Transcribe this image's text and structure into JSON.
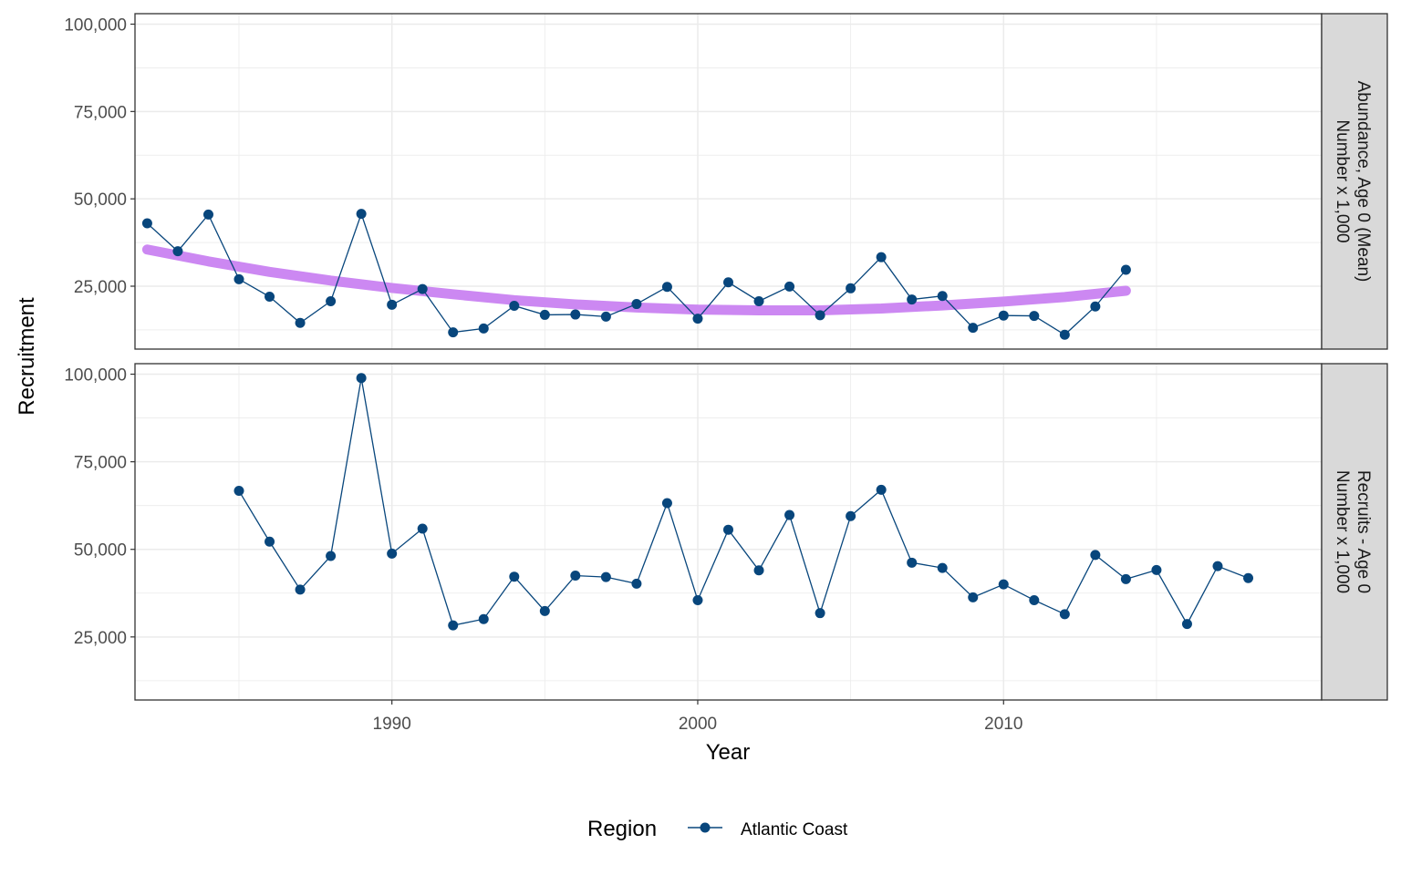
{
  "chart_data": {
    "type": "line",
    "x_label": "Year",
    "y_label": "Recruitment",
    "x_ticks": [
      1990,
      2000,
      2010
    ],
    "y_tick_values": [
      25000,
      50000,
      75000,
      100000
    ],
    "y_tick_labels": [
      "25,000",
      "50,000",
      "75,000",
      "100,000"
    ],
    "x_range": [
      1981.6,
      2020.4
    ],
    "grid": true,
    "legend": {
      "title": "Region",
      "entries": [
        "Atlantic Coast"
      ],
      "position": "bottom"
    },
    "colors": {
      "series": "#08467c",
      "trend": "#cc88f2",
      "strip_bg": "#d9d9d9",
      "grid": "#ebebeb"
    },
    "panels": [
      {
        "strip_lines": [
          "Abundance, Age 0 (Mean)",
          "Number x 1,000"
        ],
        "y_range": [
          7000,
          103000
        ],
        "series": [
          {
            "name": "Atlantic Coast",
            "x": [
              1982,
              1983,
              1984,
              1985,
              1986,
              1987,
              1988,
              1989,
              1990,
              1991,
              1992,
              1993,
              1994,
              1995,
              1996,
              1997,
              1998,
              1999,
              2000,
              2001,
              2002,
              2003,
              2004,
              2005,
              2006,
              2007,
              2008,
              2009,
              2010,
              2011,
              2012,
              2013,
              2014
            ],
            "y": [
              43000,
              35000,
              45500,
              27000,
              22000,
              14500,
              20700,
              45700,
              19700,
              24200,
              11800,
              12900,
              19400,
              16800,
              16900,
              16300,
              19900,
              24800,
              15700,
              26100,
              20700,
              24900,
              16700,
              24400,
              33300,
              21200,
              22200,
              13100,
              16600,
              16500,
              11100,
              19200,
              29700
            ]
          }
        ],
        "trend": {
          "x": [
            1982,
            1984,
            1986,
            1988,
            1990,
            1992,
            1994,
            1996,
            1998,
            2000,
            2002,
            2004,
            2006,
            2008,
            2010,
            2012,
            2014
          ],
          "y": [
            35500,
            32100,
            29100,
            26600,
            24500,
            22700,
            21000,
            19800,
            18900,
            18300,
            18100,
            18100,
            18600,
            19500,
            20600,
            21900,
            23700
          ]
        }
      },
      {
        "strip_lines": [
          "Recruits - Age 0",
          "Number x 1,000"
        ],
        "y_range": [
          7000,
          103000
        ],
        "series": [
          {
            "name": "Atlantic Coast",
            "x": [
              1985,
              1986,
              1987,
              1988,
              1989,
              1990,
              1991,
              1992,
              1993,
              1994,
              1995,
              1996,
              1997,
              1998,
              1999,
              2000,
              2001,
              2002,
              2003,
              2004,
              2005,
              2006,
              2007,
              2008,
              2009,
              2010,
              2011,
              2012,
              2013,
              2014,
              2015,
              2016,
              2017,
              2018
            ],
            "y": [
              66700,
              52200,
              38500,
              48100,
              98900,
              48800,
              55900,
              28300,
              30100,
              42200,
              32400,
              42500,
              42100,
              40200,
              63200,
              35500,
              55600,
              44000,
              59800,
              31800,
              59500,
              67000,
              46200,
              44700,
              36300,
              40000,
              35500,
              31500,
              48400,
              41500,
              44100,
              28700,
              45200,
              41800
            ]
          }
        ]
      }
    ]
  }
}
